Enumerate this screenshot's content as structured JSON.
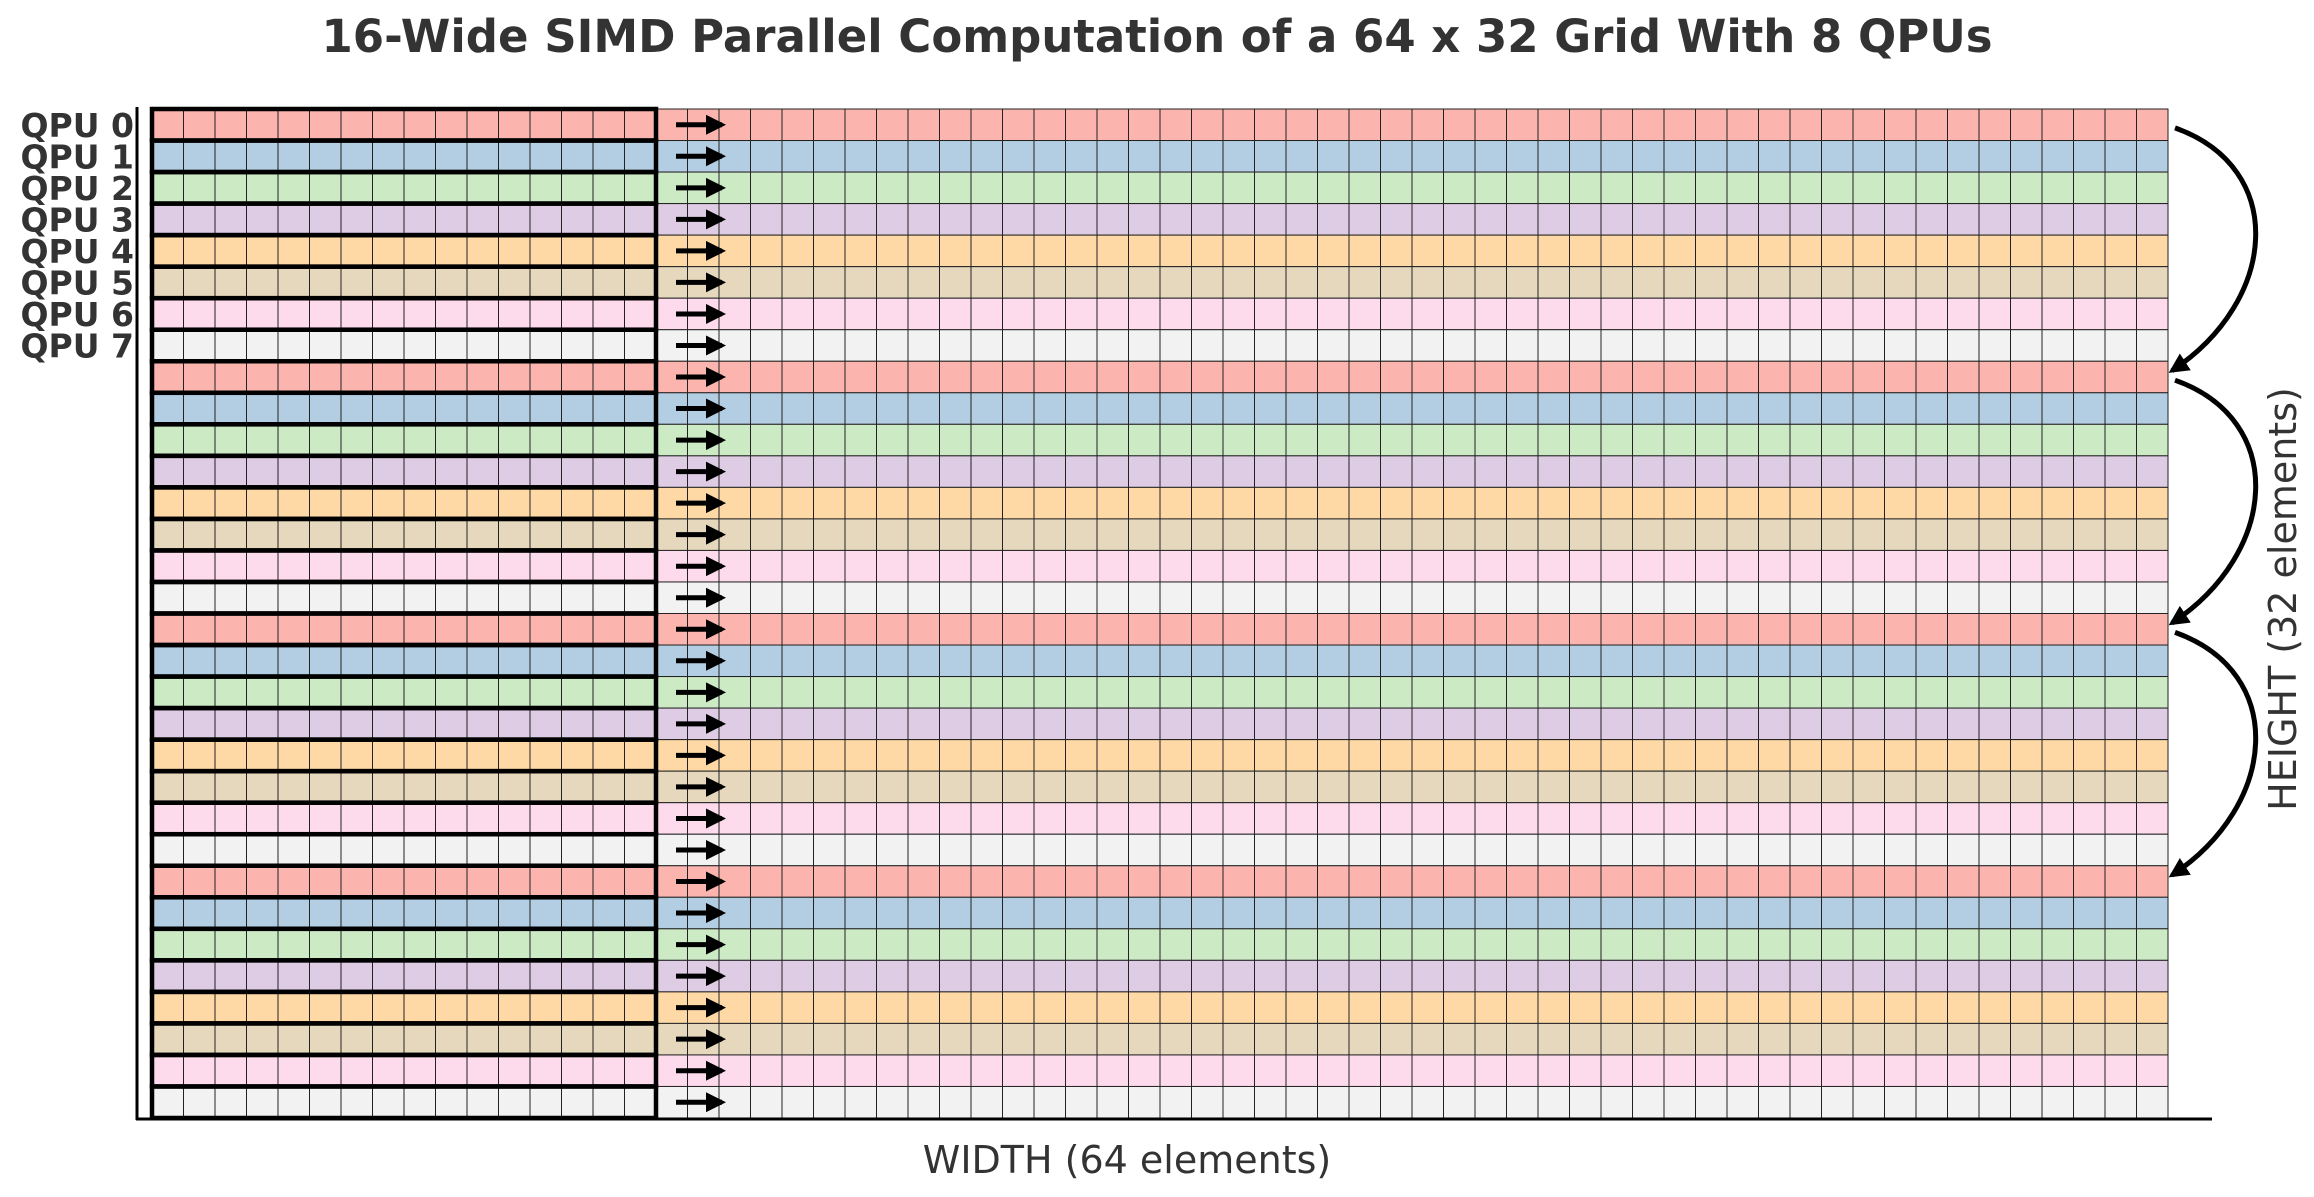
{
  "title": "16-Wide SIMD Parallel Computation of a 64 x 32 Grid With 8 QPUs",
  "xlabel": "WIDTH (64 elements)",
  "ylabel": "HEIGHT (32 elements)",
  "grid": {
    "width": 64,
    "height": 32,
    "simd_width": 16,
    "num_qpus": 8
  },
  "qpu_labels": [
    "QPU 0",
    "QPU 1",
    "QPU 2",
    "QPU 3",
    "QPU 4",
    "QPU 5",
    "QPU 6",
    "QPU 7"
  ],
  "qpu_colors": [
    "#fbb4ae",
    "#b3cde3",
    "#ccebc5",
    "#decbe4",
    "#fed9a6",
    "#e5d8bd",
    "#fddaec",
    "#f2f2f2"
  ],
  "colors": {
    "text": "#333333",
    "cell_border": "#222222",
    "block_border": "#000000"
  }
}
